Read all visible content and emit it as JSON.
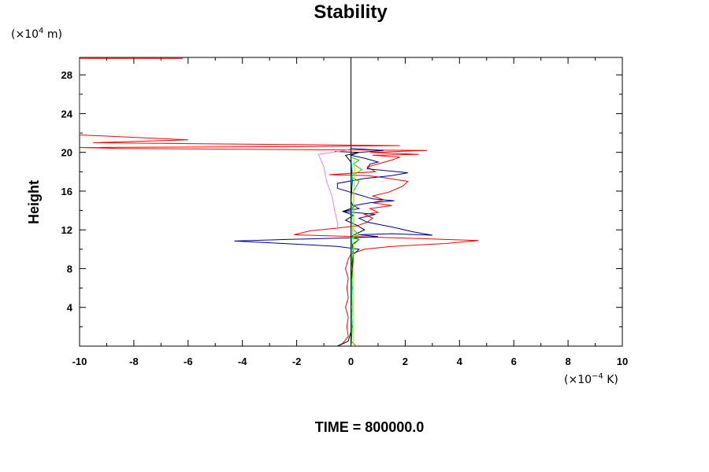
{
  "chart_data": {
    "type": "line",
    "title": "Stability",
    "ylabel": "Height",
    "xlabel": "",
    "y_unit_prefix": "(×10",
    "y_unit_exp": "4",
    "y_unit_suffix": " m)",
    "x_unit_prefix": "(×10",
    "x_unit_exp": "−4",
    "x_unit_suffix": " K)",
    "footer": "TIME = 800000.0",
    "xlim": [
      -10,
      10
    ],
    "ylim": [
      0,
      29.8
    ],
    "x_ticks": [
      "-10",
      "-8",
      "-6",
      "-4",
      "-2",
      "0",
      "2",
      "4",
      "6",
      "8",
      "10"
    ],
    "x_tick_values": [
      -10,
      -8,
      -6,
      -4,
      -2,
      0,
      2,
      4,
      6,
      8,
      10
    ],
    "y_ticks": [
      "4",
      "8",
      "12",
      "16",
      "20",
      "24",
      "28"
    ],
    "y_tick_values": [
      4,
      8,
      12,
      16,
      20,
      24,
      28
    ],
    "grid": false,
    "zero_line": true,
    "series": [
      {
        "color": "#ff0000",
        "points": [
          [
            -0.5,
            0.0
          ],
          [
            -0.3,
            0.3
          ],
          [
            -0.1,
            1.0
          ],
          [
            -0.15,
            2.0
          ],
          [
            -0.1,
            3.0
          ],
          [
            -0.2,
            4.0
          ],
          [
            -0.1,
            5.0
          ],
          [
            -0.15,
            6.0
          ],
          [
            -0.1,
            7.0
          ],
          [
            -0.2,
            8.0
          ],
          [
            -0.1,
            9.0
          ],
          [
            0.0,
            9.5
          ],
          [
            0.5,
            10.0
          ],
          [
            1.5,
            10.3
          ],
          [
            3.5,
            10.6
          ],
          [
            4.7,
            10.9
          ],
          [
            2.5,
            11.1
          ],
          [
            0.2,
            11.3
          ],
          [
            -1.0,
            11.4
          ],
          [
            -2.1,
            11.5
          ],
          [
            -1.5,
            11.9
          ],
          [
            -0.8,
            12.1
          ],
          [
            0.2,
            12.4
          ],
          [
            0.6,
            12.8
          ],
          [
            0.8,
            13.2
          ],
          [
            0.5,
            13.6
          ],
          [
            1.0,
            13.8
          ],
          [
            0.7,
            14.2
          ],
          [
            1.5,
            14.5
          ],
          [
            0.8,
            14.8
          ],
          [
            1.2,
            15.1
          ],
          [
            0.8,
            15.5
          ],
          [
            1.4,
            15.9
          ],
          [
            1.9,
            16.5
          ],
          [
            2.1,
            17.0
          ],
          [
            1.2,
            17.4
          ],
          [
            0.6,
            17.6
          ],
          [
            -0.8,
            17.7
          ],
          [
            0.9,
            18.0
          ],
          [
            0.6,
            18.5
          ],
          [
            1.5,
            19.2
          ],
          [
            1.8,
            19.5
          ],
          [
            0.8,
            19.7
          ],
          [
            2.5,
            19.8
          ],
          [
            0.7,
            20.0
          ],
          [
            2.8,
            20.2
          ],
          [
            -8.5,
            20.4
          ],
          [
            -10,
            20.5
          ],
          [
            -1.5,
            20.6
          ],
          [
            1.8,
            20.7
          ],
          [
            -9.5,
            21.0
          ],
          [
            -6.0,
            21.3
          ],
          [
            -10,
            21.8
          ],
          [
            -10,
            22.1
          ],
          [
            -10,
            29.7
          ],
          [
            -6.2,
            29.7
          ]
        ]
      },
      {
        "color": "#00008b",
        "points": [
          [
            0.0,
            0.0
          ],
          [
            0.05,
            2.0
          ],
          [
            0.0,
            4.0
          ],
          [
            0.05,
            6.0
          ],
          [
            0.0,
            8.0
          ],
          [
            0.1,
            9.5
          ],
          [
            0.3,
            10.0
          ],
          [
            -0.5,
            10.3
          ],
          [
            -2.5,
            10.6
          ],
          [
            -4.3,
            10.85
          ],
          [
            -2.5,
            11.0
          ],
          [
            0.2,
            11.2
          ],
          [
            1.0,
            11.3
          ],
          [
            0.3,
            11.5
          ],
          [
            1.5,
            11.6
          ],
          [
            3.0,
            11.45
          ],
          [
            2.3,
            11.8
          ],
          [
            1.5,
            12.3
          ],
          [
            0.6,
            12.8
          ],
          [
            0.3,
            13.2
          ],
          [
            0.9,
            13.6
          ],
          [
            -0.3,
            13.9
          ],
          [
            0.3,
            14.2
          ],
          [
            0.1,
            14.5
          ],
          [
            0.7,
            14.8
          ],
          [
            1.6,
            15.0
          ],
          [
            0.8,
            15.2
          ],
          [
            0.2,
            15.7
          ],
          [
            -0.5,
            16.3
          ],
          [
            -0.5,
            16.8
          ],
          [
            0.5,
            17.3
          ],
          [
            1.5,
            17.6
          ],
          [
            2.1,
            17.9
          ],
          [
            0.6,
            18.3
          ],
          [
            0.7,
            18.8
          ],
          [
            1.0,
            19.0
          ],
          [
            0.5,
            19.4
          ],
          [
            0.0,
            19.7
          ],
          [
            0.3,
            20.0
          ],
          [
            1.2,
            20.2
          ],
          [
            0.0,
            20.4
          ]
        ]
      },
      {
        "color": "#000000",
        "points": [
          [
            -0.5,
            0.0
          ],
          [
            -0.1,
            0.5
          ],
          [
            0.05,
            2.0
          ],
          [
            0.0,
            4.0
          ],
          [
            0.05,
            8.0
          ],
          [
            0.1,
            9.5
          ],
          [
            0.05,
            10.5
          ],
          [
            0.3,
            11.0
          ],
          [
            0.0,
            11.3
          ],
          [
            0.2,
            11.6
          ],
          [
            0.5,
            12.0
          ],
          [
            0.2,
            12.5
          ],
          [
            -0.2,
            13.0
          ],
          [
            0.1,
            13.5
          ],
          [
            -0.3,
            13.9
          ],
          [
            0.1,
            14.3
          ],
          [
            0.0,
            15.0
          ],
          [
            0.05,
            17.0
          ],
          [
            0.0,
            19.0
          ],
          [
            -0.2,
            19.7
          ],
          [
            0.3,
            20.0
          ],
          [
            -0.6,
            20.1
          ]
        ]
      },
      {
        "color": "#ee82ee",
        "points": [
          [
            -0.5,
            12.0
          ],
          [
            -0.5,
            12.8
          ],
          [
            -0.6,
            14.0
          ],
          [
            -0.7,
            15.5
          ],
          [
            -0.9,
            17.0
          ],
          [
            -1.0,
            18.5
          ],
          [
            -1.2,
            19.8
          ],
          [
            -0.2,
            20.2
          ],
          [
            0.0,
            20.4
          ]
        ]
      },
      {
        "color": "#00d000",
        "points": [
          [
            0.2,
            0.0
          ],
          [
            0.0,
            0.5
          ],
          [
            0.05,
            2.0
          ],
          [
            0.0,
            4.0
          ],
          [
            0.05,
            6.0
          ],
          [
            0.0,
            8.0
          ],
          [
            0.05,
            9.5
          ],
          [
            0.1,
            10.5
          ],
          [
            0.3,
            11.0
          ],
          [
            0.0,
            11.2
          ],
          [
            0.3,
            11.5
          ],
          [
            0.1,
            12.0
          ],
          [
            0.1,
            16.0
          ],
          [
            0.3,
            17.0
          ],
          [
            0.0,
            17.5
          ],
          [
            0.4,
            18.2
          ],
          [
            0.1,
            18.8
          ],
          [
            0.3,
            19.2
          ],
          [
            0.0,
            19.5
          ]
        ]
      },
      {
        "color": "#d4d400",
        "points": [
          [
            0.1,
            0.0
          ],
          [
            0.1,
            4.0
          ],
          [
            0.1,
            8.0
          ],
          [
            0.1,
            12.0
          ],
          [
            0.1,
            16.0
          ],
          [
            0.15,
            18.0
          ],
          [
            0.1,
            19.5
          ]
        ]
      },
      {
        "color": "#00cccc",
        "points": [
          [
            0.0,
            0.5
          ],
          [
            0.05,
            4.0
          ],
          [
            0.0,
            8.0
          ],
          [
            0.05,
            12.0
          ],
          [
            0.0,
            16.0
          ],
          [
            0.05,
            18.0
          ],
          [
            0.0,
            19.5
          ]
        ]
      }
    ]
  }
}
